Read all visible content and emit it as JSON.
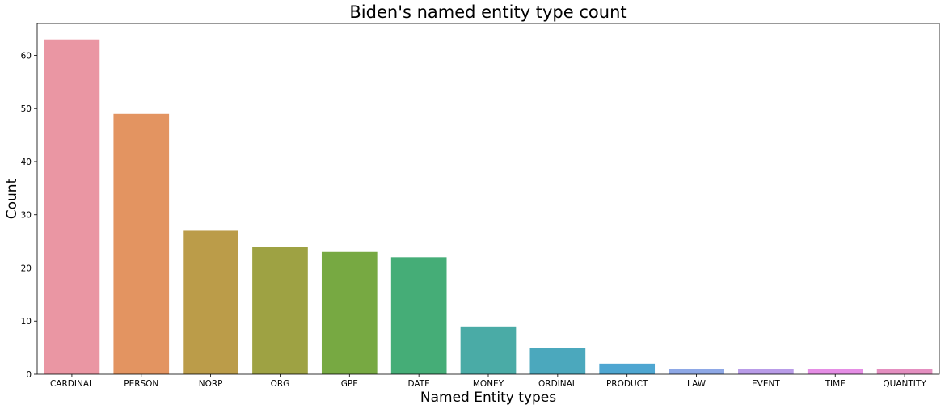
{
  "chart_data": {
    "type": "bar",
    "title": "Biden's named entity type count",
    "xlabel": "Named Entity types",
    "ylabel": "Count",
    "ylim": [
      0,
      66
    ],
    "yticks": [
      0,
      10,
      20,
      30,
      40,
      50,
      60
    ],
    "grid": false,
    "categories": [
      "CARDINAL",
      "PERSON",
      "NORP",
      "ORG",
      "GPE",
      "DATE",
      "MONEY",
      "ORDINAL",
      "PRODUCT",
      "LAW",
      "EVENT",
      "TIME",
      "QUANTITY"
    ],
    "values": [
      63,
      49,
      27,
      24,
      23,
      22,
      9,
      5,
      2,
      1,
      1,
      1,
      1
    ],
    "colors": [
      "#ea96a3",
      "#e39461",
      "#bb9c49",
      "#9ea243",
      "#77a942",
      "#45ad77",
      "#4aaba6",
      "#4ba8bd",
      "#4ea6d1",
      "#8ea8e6",
      "#b99ce8",
      "#e58ee5",
      "#e48fc0"
    ]
  }
}
